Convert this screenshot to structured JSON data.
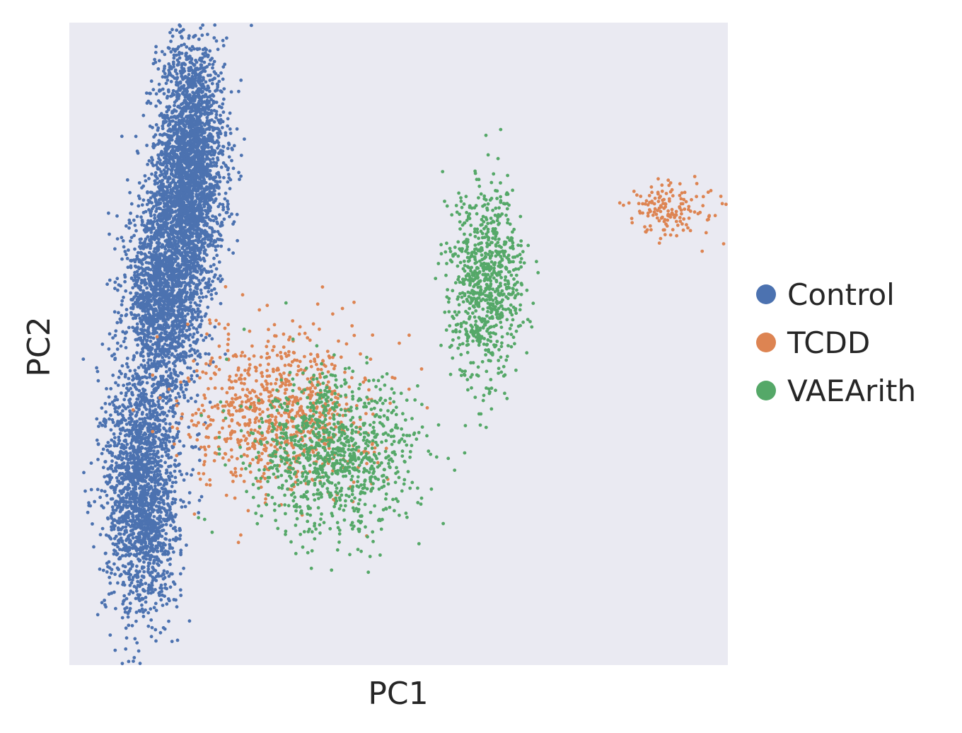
{
  "chart_data": {
    "type": "scatter",
    "title": "",
    "xlabel": "PC1",
    "ylabel": "PC2",
    "xlim": [
      -3.3,
      7.6
    ],
    "ylim": [
      -4.3,
      4.6
    ],
    "grid": false,
    "ticks_visible": false,
    "background_color": "#eaeaf2",
    "legend_position": "right",
    "series": [
      {
        "name": "Control",
        "color": "#4c72b0",
        "count": 6500,
        "clusters": [
          {
            "cx": -1.3,
            "cy": 2.6,
            "sx": 0.28,
            "sy": 0.9,
            "weight": 0.42
          },
          {
            "cx": -1.75,
            "cy": 0.8,
            "sx": 0.3,
            "sy": 0.7,
            "weight": 0.28
          },
          {
            "cx": -2.1,
            "cy": -1.9,
            "sx": 0.3,
            "sy": 0.85,
            "weight": 0.3
          }
        ]
      },
      {
        "name": "TCDD",
        "color": "#dd8452",
        "count": 1000,
        "clusters": [
          {
            "cx": 0.2,
            "cy": -0.8,
            "sx": 0.75,
            "sy": 0.55,
            "weight": 0.85
          },
          {
            "cx": 6.7,
            "cy": 2.0,
            "sx": 0.4,
            "sy": 0.2,
            "weight": 0.15
          }
        ]
      },
      {
        "name": "VAEArith",
        "color": "#55a868",
        "count": 1800,
        "clusters": [
          {
            "cx": 1.1,
            "cy": -1.4,
            "sx": 0.7,
            "sy": 0.55,
            "weight": 0.55
          },
          {
            "cx": 3.6,
            "cy": 1.0,
            "sx": 0.3,
            "sy": 0.65,
            "weight": 0.45
          }
        ]
      }
    ]
  }
}
